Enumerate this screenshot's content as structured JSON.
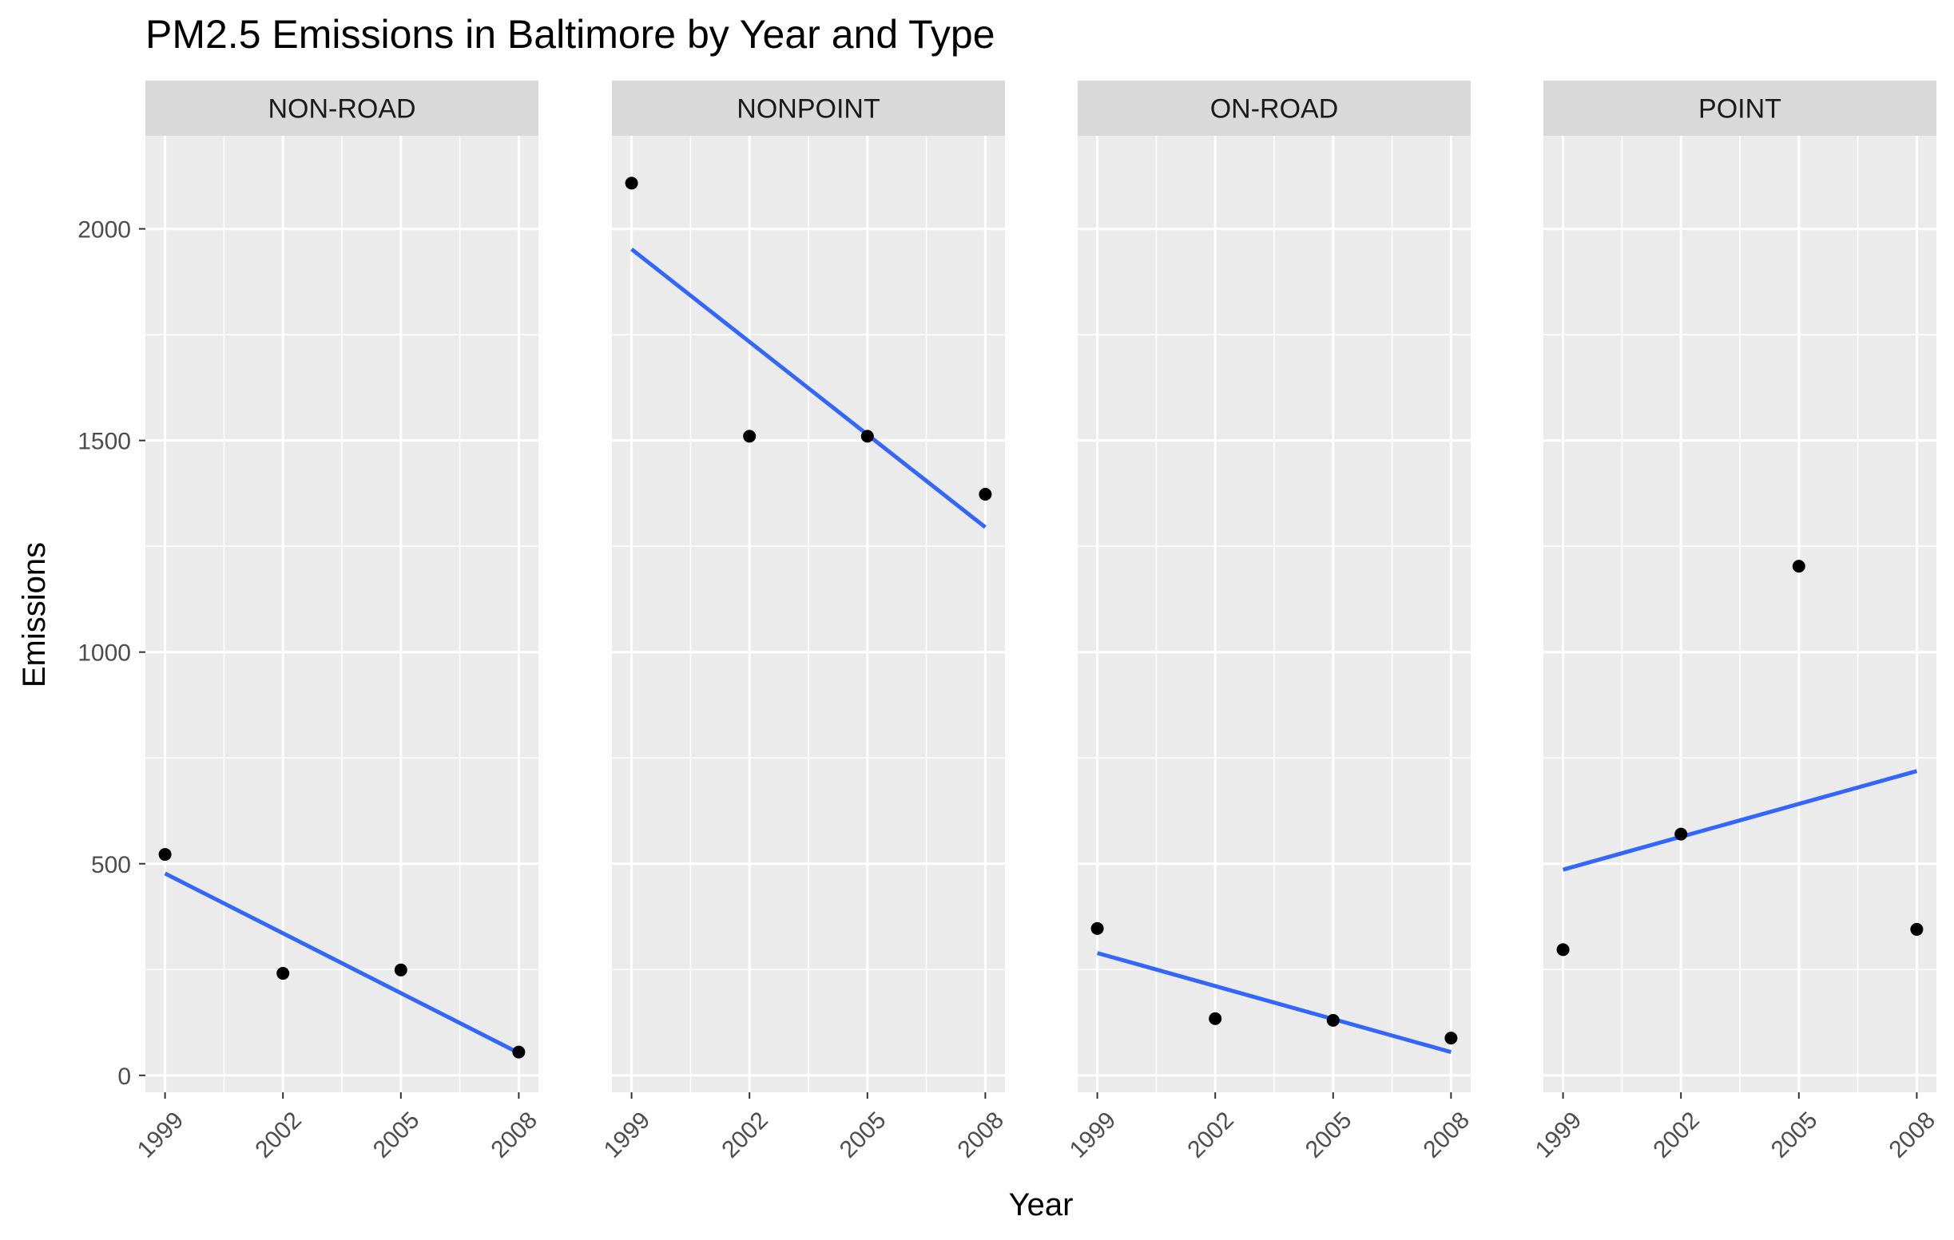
{
  "chart_data": {
    "type": "scatter",
    "title": "PM2.5 Emissions in Baltimore by Year and Type",
    "xlabel": "Year",
    "ylabel": "Emissions",
    "x_ticks": [
      1999,
      2002,
      2005,
      2008
    ],
    "y_ticks": [
      0,
      500,
      1000,
      1500,
      2000
    ],
    "xlim": [
      1998.5,
      2008.5
    ],
    "ylim": [
      -40,
      2220
    ],
    "grid": true,
    "trend_line": "linear",
    "colors": {
      "panel_bg": "#EBEBEB",
      "strip_bg": "#D9D9D9",
      "grid": "#FFFFFF",
      "point": "#000000",
      "line": "#3366FF",
      "tick_text": "#4D4D4D"
    },
    "facets": [
      {
        "name": "NON-ROAD",
        "x": [
          1999,
          2002,
          2005,
          2008
        ],
        "y": [
          522,
          241,
          249,
          55
        ],
        "fit": [
          477,
          53
        ]
      },
      {
        "name": "NONPOINT",
        "x": [
          1999,
          2002,
          2005,
          2008
        ],
        "y": [
          2108,
          1510,
          1510,
          1373
        ],
        "fit": [
          1952,
          1295
        ]
      },
      {
        "name": "ON-ROAD",
        "x": [
          1999,
          2002,
          2005,
          2008
        ],
        "y": [
          347,
          134,
          130,
          88
        ],
        "fit": [
          289,
          55
        ]
      },
      {
        "name": "POINT",
        "x": [
          1999,
          2002,
          2005,
          2008
        ],
        "y": [
          297,
          570,
          1203,
          345
        ],
        "fit": [
          486,
          719
        ]
      }
    ]
  }
}
